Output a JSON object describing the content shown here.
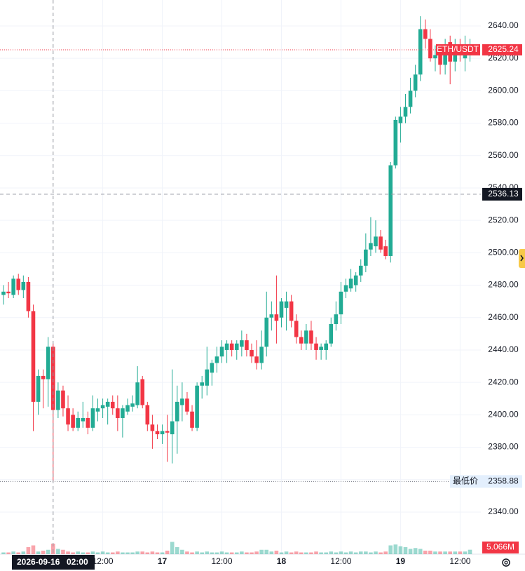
{
  "chart_data": {
    "type": "candlestick",
    "symbol": "ETH/USDT",
    "low_label": "最低价",
    "up_color": "#22ab94",
    "down_color": "#f23645",
    "ylim": [
      2314,
      2656
    ],
    "yticks": [
      {
        "value": 2640,
        "label": "2640.00"
      },
      {
        "value": 2620,
        "label": "2620.00"
      },
      {
        "value": 2600,
        "label": "2600.00"
      },
      {
        "value": 2580,
        "label": "2580.00"
      },
      {
        "value": 2560,
        "label": "2560.00"
      },
      {
        "value": 2540,
        "label": "2540.00"
      },
      {
        "value": 2520,
        "label": "2520.00"
      },
      {
        "value": 2500,
        "label": "2500.00"
      },
      {
        "value": 2480,
        "label": "2480.00"
      },
      {
        "value": 2460,
        "label": "2460.00"
      },
      {
        "value": 2440,
        "label": "2440.00"
      },
      {
        "value": 2420,
        "label": "2420.00"
      },
      {
        "value": 2400,
        "label": "2400.00"
      },
      {
        "value": 2380,
        "label": "2380.00"
      },
      {
        "value": 2360,
        "label": "2360.00"
      },
      {
        "value": 2340,
        "label": "2340.00"
      }
    ],
    "categories": [
      null,
      null,
      null,
      null,
      null,
      null,
      null,
      null,
      null,
      null,
      null,
      null,
      null,
      null,
      null,
      null,
      null,
      null,
      null,
      null,
      "12:00",
      null,
      null,
      null,
      null,
      null,
      null,
      null,
      null,
      null,
      null,
      null,
      "17",
      null,
      null,
      null,
      null,
      null,
      null,
      null,
      null,
      null,
      null,
      null,
      "12:00",
      null,
      null,
      null,
      null,
      null,
      null,
      null,
      null,
      null,
      null,
      null,
      "18",
      null,
      null,
      null,
      null,
      null,
      null,
      null,
      null,
      null,
      null,
      null,
      "12:00",
      null,
      null,
      null,
      null,
      null,
      null,
      null,
      null,
      null,
      null,
      null,
      "19",
      null,
      null,
      null,
      null,
      null,
      null,
      null,
      null,
      null,
      null,
      null,
      "12:00",
      null,
      null
    ],
    "open": [
      2474,
      2476,
      2474,
      2484,
      2477,
      2482,
      2464,
      2408,
      2424,
      2422,
      2442,
      2403,
      2415,
      2404,
      2400,
      2392,
      2396,
      2398,
      2392,
      2402,
      2404,
      2405,
      2408,
      2404,
      2398,
      2402,
      2405,
      2406,
      2422,
      2406,
      2394,
      2390,
      2388,
      2390,
      2388,
      2396,
      2406,
      2410,
      2402,
      2392,
      2418,
      2418,
      2426,
      2432,
      2436,
      2440,
      2444,
      2440,
      2442,
      2446,
      2440,
      2436,
      2432,
      2442,
      2460,
      2462,
      2460,
      2466,
      2470,
      2458,
      2448,
      2444,
      2452,
      2444,
      2440,
      2440,
      2444,
      2456,
      2462,
      2476,
      2478,
      2480,
      2486,
      2492,
      2502,
      2504,
      2510,
      2504,
      2498,
      2554,
      2580,
      2584,
      2590,
      2600,
      2610,
      2638,
      2632,
      2620,
      2622,
      2616,
      2630,
      2618,
      2628,
      2620,
      2623
    ],
    "high": [
      2480,
      2482,
      2486,
      2487,
      2486,
      2485,
      2468,
      2428,
      2428,
      2448,
      2444,
      2420,
      2418,
      2412,
      2404,
      2402,
      2408,
      2402,
      2412,
      2410,
      2410,
      2410,
      2412,
      2412,
      2406,
      2410,
      2412,
      2430,
      2424,
      2408,
      2400,
      2394,
      2394,
      2400,
      2428,
      2418,
      2420,
      2414,
      2406,
      2420,
      2424,
      2442,
      2434,
      2442,
      2446,
      2446,
      2446,
      2446,
      2452,
      2450,
      2444,
      2446,
      2452,
      2476,
      2470,
      2486,
      2472,
      2476,
      2474,
      2462,
      2452,
      2456,
      2458,
      2448,
      2444,
      2446,
      2460,
      2470,
      2482,
      2484,
      2490,
      2488,
      2496,
      2512,
      2522,
      2520,
      2514,
      2508,
      2556,
      2584,
      2590,
      2598,
      2608,
      2616,
      2646,
      2644,
      2638,
      2628,
      2628,
      2632,
      2634,
      2632,
      2632,
      2634,
      2632
    ],
    "low": [
      2468,
      2472,
      2472,
      2474,
      2472,
      2460,
      2390,
      2400,
      2404,
      2405,
      2358.88,
      2398,
      2399,
      2390,
      2390,
      2390,
      2392,
      2388,
      2390,
      2396,
      2398,
      2394,
      2400,
      2390,
      2386,
      2400,
      2402,
      2404,
      2404,
      2390,
      2379,
      2385,
      2382,
      2371,
      2370,
      2376,
      2396,
      2400,
      2390,
      2390,
      2410,
      2412,
      2418,
      2426,
      2432,
      2432,
      2436,
      2434,
      2436,
      2436,
      2432,
      2428,
      2428,
      2436,
      2452,
      2444,
      2454,
      2452,
      2454,
      2444,
      2440,
      2440,
      2440,
      2434,
      2434,
      2434,
      2442,
      2452,
      2456,
      2472,
      2476,
      2476,
      2482,
      2488,
      2498,
      2500,
      2500,
      2496,
      2494,
      2552,
      2568,
      2580,
      2586,
      2596,
      2606,
      2626,
      2618,
      2612,
      2610,
      2610,
      2604,
      2612,
      2618,
      2612,
      2618
    ],
    "close": [
      2476,
      2475,
      2484,
      2477,
      2482,
      2464,
      2408,
      2424,
      2422,
      2442,
      2403,
      2415,
      2404,
      2394,
      2392,
      2398,
      2398,
      2392,
      2404,
      2404,
      2406,
      2408,
      2404,
      2398,
      2404,
      2406,
      2407,
      2420,
      2406,
      2394,
      2390,
      2388,
      2390,
      2389,
      2396,
      2408,
      2410,
      2402,
      2392,
      2418,
      2420,
      2428,
      2432,
      2436,
      2442,
      2444,
      2440,
      2444,
      2446,
      2440,
      2436,
      2432,
      2442,
      2460,
      2462,
      2458,
      2470,
      2470,
      2458,
      2448,
      2444,
      2452,
      2444,
      2440,
      2442,
      2444,
      2456,
      2462,
      2476,
      2480,
      2484,
      2486,
      2492,
      2502,
      2506,
      2510,
      2502,
      2498,
      2554,
      2582,
      2584,
      2590,
      2600,
      2610,
      2638,
      2632,
      2620,
      2622,
      2616,
      2624,
      2618,
      2628,
      2624,
      2624,
      2625.24
    ],
    "volume": [
      2,
      2,
      3,
      2,
      3,
      8,
      10,
      3,
      4,
      5,
      12,
      6,
      5,
      3,
      2,
      3,
      2,
      2,
      3,
      2,
      3,
      2,
      2,
      3,
      2,
      2,
      2,
      3,
      3,
      2,
      3,
      2,
      2,
      4,
      14,
      8,
      5,
      3,
      2,
      3,
      2,
      3,
      2,
      2,
      3,
      2,
      2,
      2,
      3,
      2,
      2,
      3,
      5,
      5,
      3,
      4,
      2,
      3,
      2,
      3,
      2,
      2,
      2,
      3,
      2,
      2,
      3,
      2,
      3,
      2,
      3,
      2,
      3,
      3,
      2,
      3,
      2,
      3,
      10,
      11,
      9,
      8,
      6,
      7,
      6,
      4,
      4,
      3,
      3,
      3,
      3,
      3,
      3,
      3,
      5.066
    ],
    "volume_ylim": [
      0,
      16
    ],
    "volume_value_labels": {
      "94": "5.066M"
    },
    "crosshair": {
      "index": 10,
      "date": "2026-09-16",
      "time": "02:00",
      "price": 2536.13
    }
  }
}
